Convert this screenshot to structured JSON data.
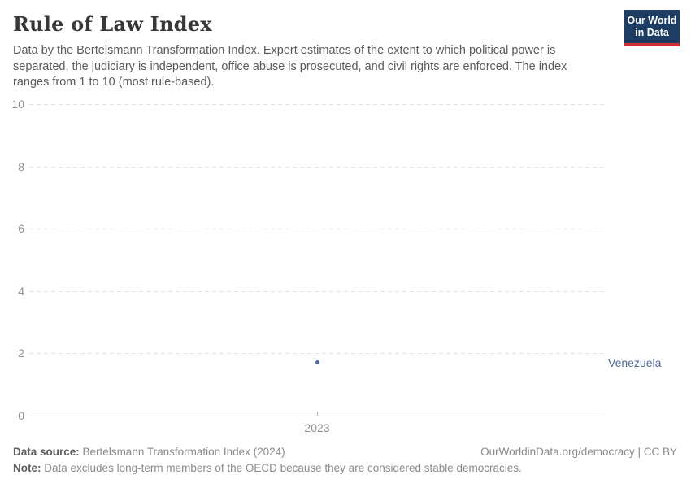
{
  "header": {
    "title": "Rule of Law Index",
    "subtitle": "Data by the Bertelsmann Transformation Index. Expert estimates of the extent to which political power is separated, the judiciary is independent, office abuse is prosecuted, and civil rights are enforced. The index ranges from 1 to 10 (most rule-based).",
    "logo": {
      "line1": "Our World",
      "line2": "in Data",
      "bg_color": "#1d3d63",
      "accent_color": "#cf2b38"
    }
  },
  "chart_data": {
    "type": "scatter",
    "title": "Rule of Law Index",
    "x": [
      2023
    ],
    "x_ticks": [
      "2023"
    ],
    "y_ticks": [
      0,
      2,
      4,
      6,
      8,
      10
    ],
    "ylim": [
      0,
      10
    ],
    "grid": "dashed horizontal, solid baseline at 0",
    "legend_position": "right edge, series label beside point",
    "point_color": "#4c6a9c",
    "series": [
      {
        "name": "Venezuela",
        "x": [
          2023
        ],
        "values": [
          1.7
        ]
      }
    ]
  },
  "footer": {
    "source_label": "Data source:",
    "source_value": "Bertelsmann Transformation Index (2024)",
    "attribution": "OurWorldinData.org/democracy | CC BY",
    "note_label": "Note:",
    "note_value": "Data excludes long-term members of the OECD because they are considered stable democracies."
  }
}
